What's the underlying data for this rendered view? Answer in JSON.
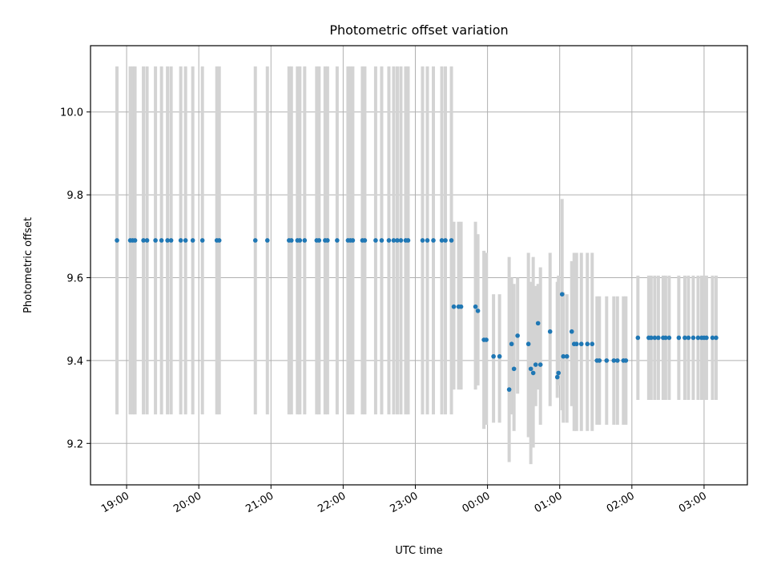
{
  "chart_data": {
    "type": "scatter",
    "title": "Photometric offset variation",
    "xlabel": "UTC time",
    "ylabel": "Photometric offset",
    "x_axis": {
      "type": "time",
      "start": "18:30",
      "end": "03:36",
      "ticks": [
        "19:00",
        "20:00",
        "21:00",
        "22:00",
        "23:00",
        "00:00",
        "01:00",
        "02:00",
        "03:00"
      ]
    },
    "ylim": [
      9.1,
      10.16
    ],
    "yticks": [
      "9.2",
      "9.4",
      "9.6",
      "9.8",
      "10.0"
    ],
    "grid": true,
    "colors": {
      "points": "#1f77b4",
      "error_bars": "#d3d3d3"
    },
    "series": [
      {
        "points": [
          [
            "18:52",
            9.69,
            9.27,
            10.11
          ],
          [
            "19:03",
            9.69,
            9.27,
            10.11
          ],
          [
            "19:05",
            9.69,
            9.27,
            10.11
          ],
          [
            "19:07",
            9.69,
            9.27,
            10.11
          ],
          [
            "19:14",
            9.69,
            9.27,
            10.11
          ],
          [
            "19:17",
            9.69,
            9.27,
            10.11
          ],
          [
            "19:24",
            9.69,
            9.27,
            10.11
          ],
          [
            "19:29",
            9.69,
            9.27,
            10.11
          ],
          [
            "19:34",
            9.69,
            9.27,
            10.11
          ],
          [
            "19:37",
            9.69,
            9.27,
            10.11
          ],
          [
            "19:45",
            9.69,
            9.27,
            10.11
          ],
          [
            "19:49",
            9.69,
            9.27,
            10.11
          ],
          [
            "19:55",
            9.69,
            9.27,
            10.11
          ],
          [
            "20:03",
            9.69,
            9.27,
            10.11
          ],
          [
            "20:15",
            9.69,
            9.27,
            10.11
          ],
          [
            "20:17",
            9.69,
            9.27,
            10.11
          ],
          [
            "20:47",
            9.69,
            9.27,
            10.11
          ],
          [
            "20:57",
            9.69,
            9.27,
            10.11
          ],
          [
            "21:15",
            9.69,
            9.27,
            10.11
          ],
          [
            "21:17",
            9.69,
            9.27,
            10.11
          ],
          [
            "21:22",
            9.69,
            9.27,
            10.11
          ],
          [
            "21:24",
            9.69,
            9.27,
            10.11
          ],
          [
            "21:28",
            9.69,
            9.27,
            10.11
          ],
          [
            "21:38",
            9.69,
            9.27,
            10.11
          ],
          [
            "21:40",
            9.69,
            9.27,
            10.11
          ],
          [
            "21:45",
            9.69,
            9.27,
            10.11
          ],
          [
            "21:47",
            9.69,
            9.27,
            10.11
          ],
          [
            "21:55",
            9.69,
            9.27,
            10.11
          ],
          [
            "22:04",
            9.69,
            9.27,
            10.11
          ],
          [
            "22:06",
            9.69,
            9.27,
            10.11
          ],
          [
            "22:08",
            9.69,
            9.27,
            10.11
          ],
          [
            "22:16",
            9.69,
            9.27,
            10.11
          ],
          [
            "22:18",
            9.69,
            9.27,
            10.11
          ],
          [
            "22:27",
            9.69,
            9.27,
            10.11
          ],
          [
            "22:32",
            9.69,
            9.27,
            10.11
          ],
          [
            "22:38",
            9.69,
            9.27,
            10.11
          ],
          [
            "22:42",
            9.69,
            9.27,
            10.11
          ],
          [
            "22:45",
            9.69,
            9.27,
            10.11
          ],
          [
            "22:48",
            9.69,
            9.27,
            10.11
          ],
          [
            "22:52",
            9.69,
            9.27,
            10.11
          ],
          [
            "22:54",
            9.69,
            9.27,
            10.11
          ],
          [
            "23:06",
            9.69,
            9.27,
            10.11
          ],
          [
            "23:10",
            9.69,
            9.27,
            10.11
          ],
          [
            "23:15",
            9.69,
            9.27,
            10.11
          ],
          [
            "23:22",
            9.69,
            9.27,
            10.11
          ],
          [
            "23:25",
            9.69,
            9.27,
            10.11
          ],
          [
            "23:30",
            9.69,
            9.27,
            10.11
          ],
          [
            "23:32",
            9.53,
            9.33,
            9.735
          ],
          [
            "23:36",
            9.53,
            9.33,
            9.735
          ],
          [
            "23:38",
            9.53,
            9.33,
            9.735
          ],
          [
            "23:50",
            9.53,
            9.33,
            9.735
          ],
          [
            "23:52",
            9.52,
            9.34,
            9.705
          ],
          [
            "23:57",
            9.45,
            9.235,
            9.665
          ],
          [
            "23:59",
            9.45,
            9.245,
            9.66
          ],
          [
            "00:05",
            9.41,
            9.25,
            9.56
          ],
          [
            "00:10",
            9.41,
            9.25,
            9.56
          ],
          [
            "00:18",
            9.33,
            9.155,
            9.65
          ],
          [
            "00:20",
            9.44,
            9.27,
            9.6
          ],
          [
            "00:22",
            9.38,
            9.23,
            9.585
          ],
          [
            "00:25",
            9.46,
            9.32,
            9.6
          ],
          [
            "00:34",
            9.44,
            9.215,
            9.66
          ],
          [
            "00:36",
            9.38,
            9.15,
            9.59
          ],
          [
            "00:38",
            9.37,
            9.19,
            9.65
          ],
          [
            "00:40",
            9.39,
            9.29,
            9.58
          ],
          [
            "00:44",
            9.39,
            9.245,
            9.625
          ],
          [
            "00:42",
            9.49,
            9.33,
            9.585
          ],
          [
            "00:52",
            9.47,
            9.29,
            9.66
          ],
          [
            "00:58",
            9.36,
            9.31,
            9.59
          ],
          [
            "00:59",
            9.37,
            9.34,
            9.605
          ],
          [
            "01:02",
            9.56,
            9.28,
            9.79
          ],
          [
            "01:03",
            9.41,
            9.25,
            9.565
          ],
          [
            "01:06",
            9.41,
            9.25,
            9.56
          ],
          [
            "01:10",
            9.47,
            9.29,
            9.64
          ],
          [
            "01:12",
            9.44,
            9.23,
            9.66
          ],
          [
            "01:14",
            9.44,
            9.23,
            9.66
          ],
          [
            "01:18",
            9.44,
            9.23,
            9.66
          ],
          [
            "01:23",
            9.44,
            9.23,
            9.66
          ],
          [
            "01:27",
            9.44,
            9.23,
            9.66
          ],
          [
            "01:31",
            9.4,
            9.245,
            9.555
          ],
          [
            "01:33",
            9.4,
            9.245,
            9.555
          ],
          [
            "01:39",
            9.4,
            9.245,
            9.555
          ],
          [
            "01:45",
            9.4,
            9.245,
            9.555
          ],
          [
            "01:48",
            9.4,
            9.245,
            9.555
          ],
          [
            "01:53",
            9.4,
            9.245,
            9.555
          ],
          [
            "01:55",
            9.4,
            9.245,
            9.555
          ],
          [
            "02:05",
            9.455,
            9.305,
            9.605
          ],
          [
            "02:14",
            9.455,
            9.305,
            9.605
          ],
          [
            "02:16",
            9.455,
            9.305,
            9.605
          ],
          [
            "02:19",
            9.455,
            9.305,
            9.605
          ],
          [
            "02:22",
            9.455,
            9.305,
            9.605
          ],
          [
            "02:26",
            9.455,
            9.305,
            9.605
          ],
          [
            "02:28",
            9.455,
            9.305,
            9.605
          ],
          [
            "02:31",
            9.455,
            9.305,
            9.605
          ],
          [
            "02:39",
            9.455,
            9.305,
            9.605
          ],
          [
            "02:44",
            9.455,
            9.305,
            9.605
          ],
          [
            "02:47",
            9.455,
            9.305,
            9.605
          ],
          [
            "02:51",
            9.455,
            9.305,
            9.605
          ],
          [
            "02:55",
            9.455,
            9.305,
            9.605
          ],
          [
            "02:58",
            9.455,
            9.305,
            9.605
          ],
          [
            "03:00",
            9.455,
            9.305,
            9.605
          ],
          [
            "03:02",
            9.455,
            9.305,
            9.605
          ],
          [
            "03:07",
            9.455,
            9.305,
            9.605
          ],
          [
            "03:10",
            9.455,
            9.305,
            9.605
          ]
        ]
      }
    ]
  }
}
